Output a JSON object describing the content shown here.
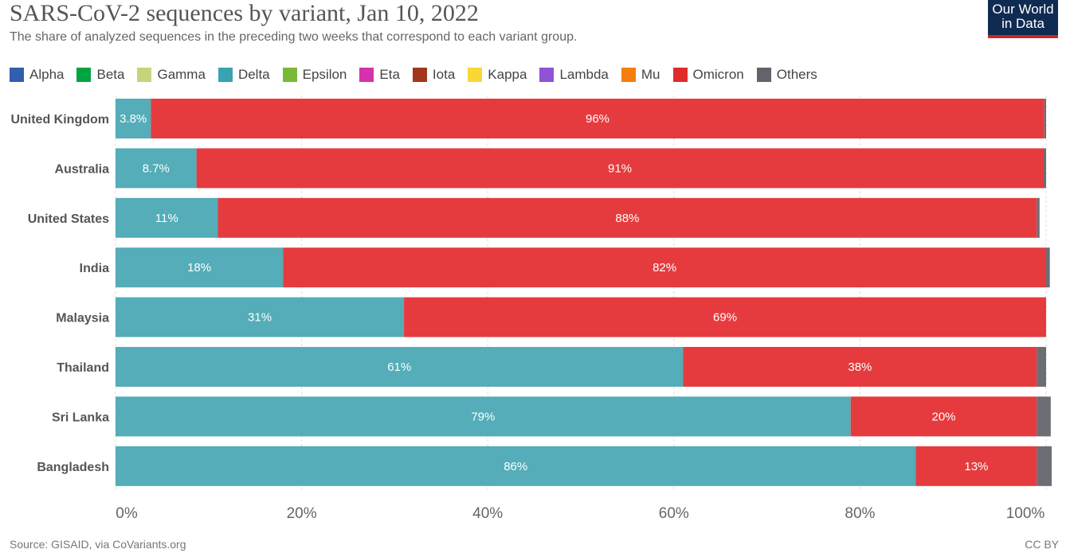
{
  "title": "SARS-CoV-2 sequences by variant, Jan 10, 2022",
  "subtitle": "The share of analyzed sequences in the preceding two weeks that correspond to each variant group.",
  "logo": {
    "line1": "Our World",
    "line2": "in Data"
  },
  "source": "Source: GISAID, via CoVariants.org",
  "license": "CC BY",
  "chart_data": {
    "type": "bar",
    "orientation": "horizontal",
    "stacked": true,
    "legend": [
      {
        "name": "Alpha",
        "color": "#2f5fae"
      },
      {
        "name": "Beta",
        "color": "#00a541"
      },
      {
        "name": "Gamma",
        "color": "#c5d57c"
      },
      {
        "name": "Delta",
        "color": "#3aa3b0"
      },
      {
        "name": "Epsilon",
        "color": "#7ab937"
      },
      {
        "name": "Eta",
        "color": "#d532ac"
      },
      {
        "name": "Iota",
        "color": "#a2371b"
      },
      {
        "name": "Kappa",
        "color": "#f7d835"
      },
      {
        "name": "Lambda",
        "color": "#9052d6"
      },
      {
        "name": "Mu",
        "color": "#f57e0a"
      },
      {
        "name": "Omicron",
        "color": "#e02b2b"
      },
      {
        "name": "Others",
        "color": "#63636b"
      }
    ],
    "legend_placement": "top",
    "categories": [
      "United Kingdom",
      "Australia",
      "United States",
      "India",
      "Malaysia",
      "Thailand",
      "Sri Lanka",
      "Bangladesh"
    ],
    "series": [
      {
        "name": "Delta",
        "color": "#54adb8",
        "values": [
          3.8,
          8.7,
          11,
          18,
          31,
          61,
          79,
          86
        ],
        "labels": [
          "3.8%",
          "8.7%",
          "11%",
          "18%",
          "31%",
          "61%",
          "79%",
          "86%"
        ]
      },
      {
        "name": "Omicron",
        "color": "#e63b3e",
        "values": [
          96,
          91,
          88,
          82,
          69,
          38,
          20,
          13
        ],
        "labels": [
          "96%",
          "91%",
          "88%",
          "82%",
          "69%",
          "38%",
          "20%",
          "13%"
        ]
      },
      {
        "name": "Others",
        "color": "#6b6e74",
        "values": [
          0.2,
          0.3,
          0.3,
          0.4,
          0,
          1,
          1.5,
          1.6
        ],
        "labels": [
          "",
          "",
          "",
          "",
          "",
          "",
          "",
          ""
        ]
      }
    ],
    "xlim": [
      0,
      100
    ],
    "xticks": [
      "0%",
      "20%",
      "40%",
      "60%",
      "80%",
      "100%"
    ],
    "grid": "vertical dashed"
  }
}
